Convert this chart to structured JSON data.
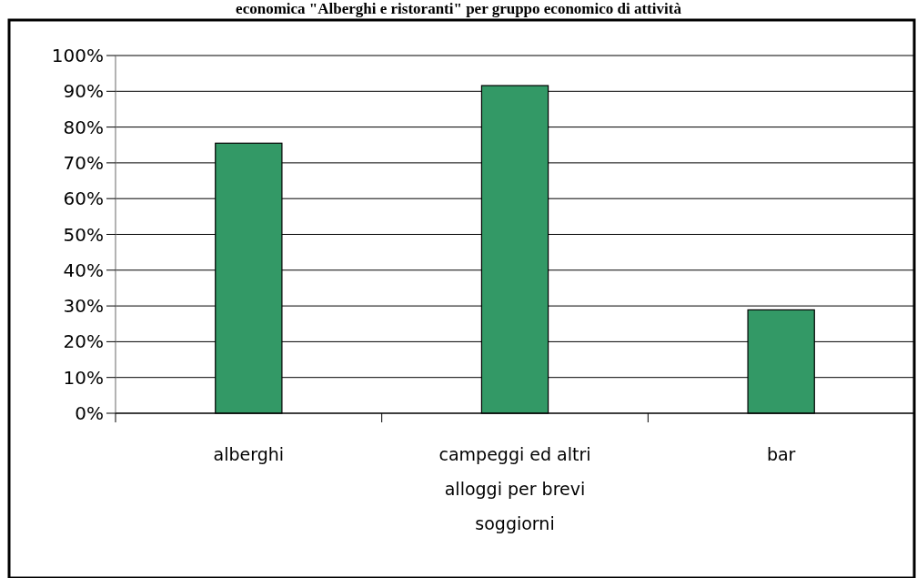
{
  "chart_data": {
    "type": "bar",
    "title": "economica \"Alberghi e ristoranti\" per gruppo economico di attività",
    "categories": [
      "alberghi",
      "campeggi ed altri alloggi per brevi soggiorni",
      "bar"
    ],
    "values": [
      75.5,
      91.6,
      28.9
    ],
    "color": "#339966",
    "ylim": [
      0,
      100
    ],
    "yticks": [
      {
        "value": 0,
        "label": "0%"
      },
      {
        "value": 10,
        "label": "10%"
      },
      {
        "value": 20,
        "label": "20%"
      },
      {
        "value": 30,
        "label": "30%"
      },
      {
        "value": 40,
        "label": "40%"
      },
      {
        "value": 50,
        "label": "50%"
      },
      {
        "value": 60,
        "label": "60%"
      },
      {
        "value": 70,
        "label": "70%"
      },
      {
        "value": 80,
        "label": "80%"
      },
      {
        "value": 90,
        "label": "90%"
      },
      {
        "value": 100,
        "label": "100%"
      }
    ],
    "grid": "y"
  }
}
